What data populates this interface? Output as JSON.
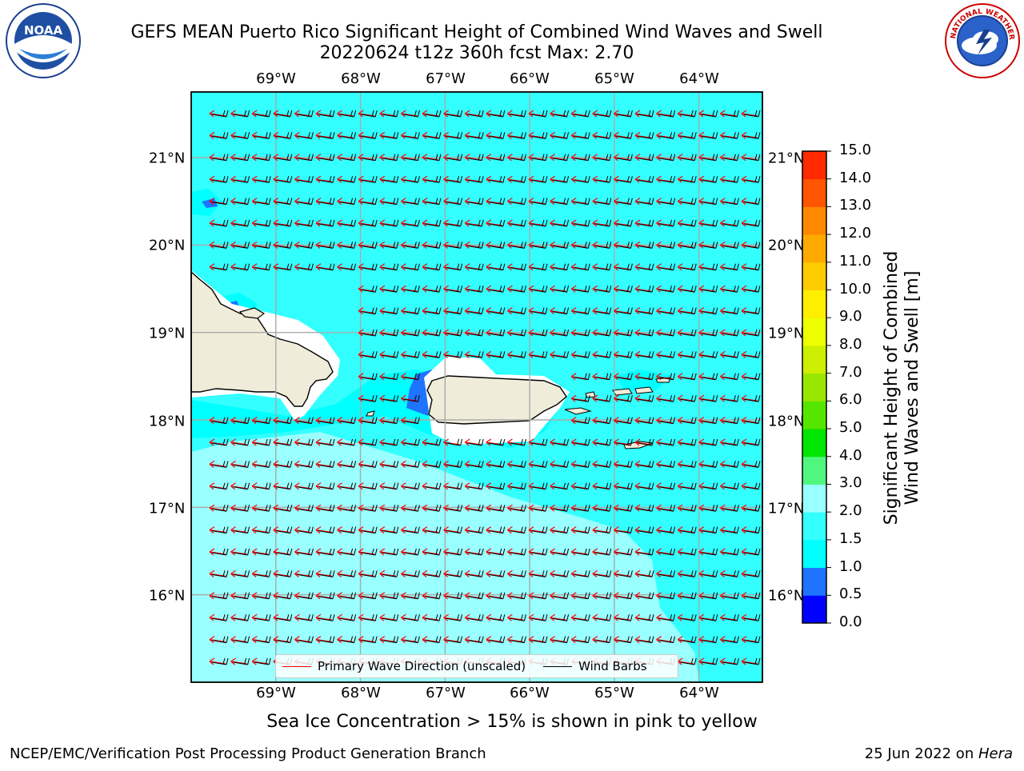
{
  "header": {
    "title_line1": "GEFS MEAN Puerto Rico Significant Height of Combined Wind Waves and Swell",
    "title_line2": "20220624 t12z 360h fcst   Max: 2.70"
  },
  "logos": {
    "left": {
      "name": "noaa-logo",
      "text": "NOAA"
    },
    "right": {
      "name": "nws-logo",
      "text": "NATIONAL WEATHER SERVICE"
    }
  },
  "map": {
    "lon_labels": [
      "69°W",
      "68°W",
      "67°W",
      "66°W",
      "65°W",
      "64°W"
    ],
    "lat_labels": [
      "21°N",
      "20°N",
      "19°N",
      "18°N",
      "17°N",
      "16°N"
    ],
    "lon_range": [
      -70.0,
      -63.25
    ],
    "lat_range": [
      15.0,
      21.75
    ],
    "land_color": "#efedda",
    "grid_color": "#aaaaaa"
  },
  "colorbar": {
    "title_line1": "Significant Height of Combined",
    "title_line2": "Wind Waves and Swell [m]",
    "ticks": [
      "0.0",
      "0.5",
      "1.0",
      "1.5",
      "2.0",
      "3.0",
      "4.0",
      "5.0",
      "6.0",
      "7.0",
      "8.0",
      "9.0",
      "10.0",
      "11.0",
      "12.0",
      "13.0",
      "14.0",
      "15.0"
    ],
    "colors": [
      "#0000ff",
      "#1e73ff",
      "#00ffff",
      "#33ffff",
      "#99ffff",
      "#4ff77f",
      "#00e600",
      "#55e600",
      "#99e600",
      "#ccee00",
      "#eeff00",
      "#ffee00",
      "#ffcc00",
      "#ffaa00",
      "#ff8800",
      "#ff5500",
      "#ff2a00"
    ]
  },
  "legend": {
    "wave_label": "Primary Wave Direction (unscaled)",
    "wave_color": "#ff0000",
    "barb_label": "Wind Barbs",
    "barb_color": "#000000"
  },
  "notes": {
    "ice": "Sea Ice Concentration > 15% is shown in pink to yellow",
    "credit": "NCEP/EMC/Verification Post Processing Product Generation Branch",
    "date_prefix": "25 Jun 2022 on ",
    "host": "Hera"
  }
}
